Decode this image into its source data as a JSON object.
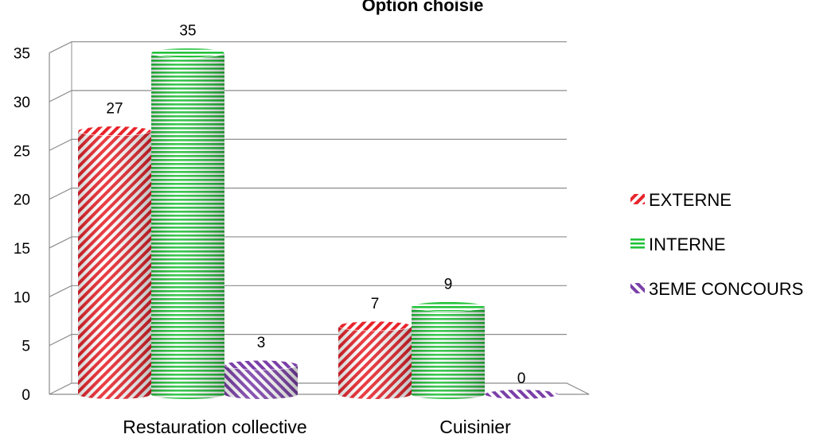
{
  "chart_data": {
    "type": "bar",
    "title": "Option choisie",
    "categories": [
      "Restauration collective",
      "Cuisinier"
    ],
    "series": [
      {
        "name": "EXTERNE",
        "values": [
          27,
          7
        ],
        "color": "#e8242c",
        "pattern": "diagonal-stripes"
      },
      {
        "name": "INTERNE",
        "values": [
          35,
          9
        ],
        "color": "#22c23a",
        "pattern": "horizontal-stripes"
      },
      {
        "name": "3EME CONCOURS",
        "values": [
          3,
          0
        ],
        "color": "#7a3fa8",
        "pattern": "diagonal-stripes-reverse"
      }
    ],
    "ylim": [
      0,
      35
    ],
    "yticks": [
      0,
      5,
      10,
      15,
      20,
      25,
      30,
      35
    ],
    "grid": true,
    "legend_position": "right",
    "data_labels": true,
    "style": "3d-cylinder"
  }
}
